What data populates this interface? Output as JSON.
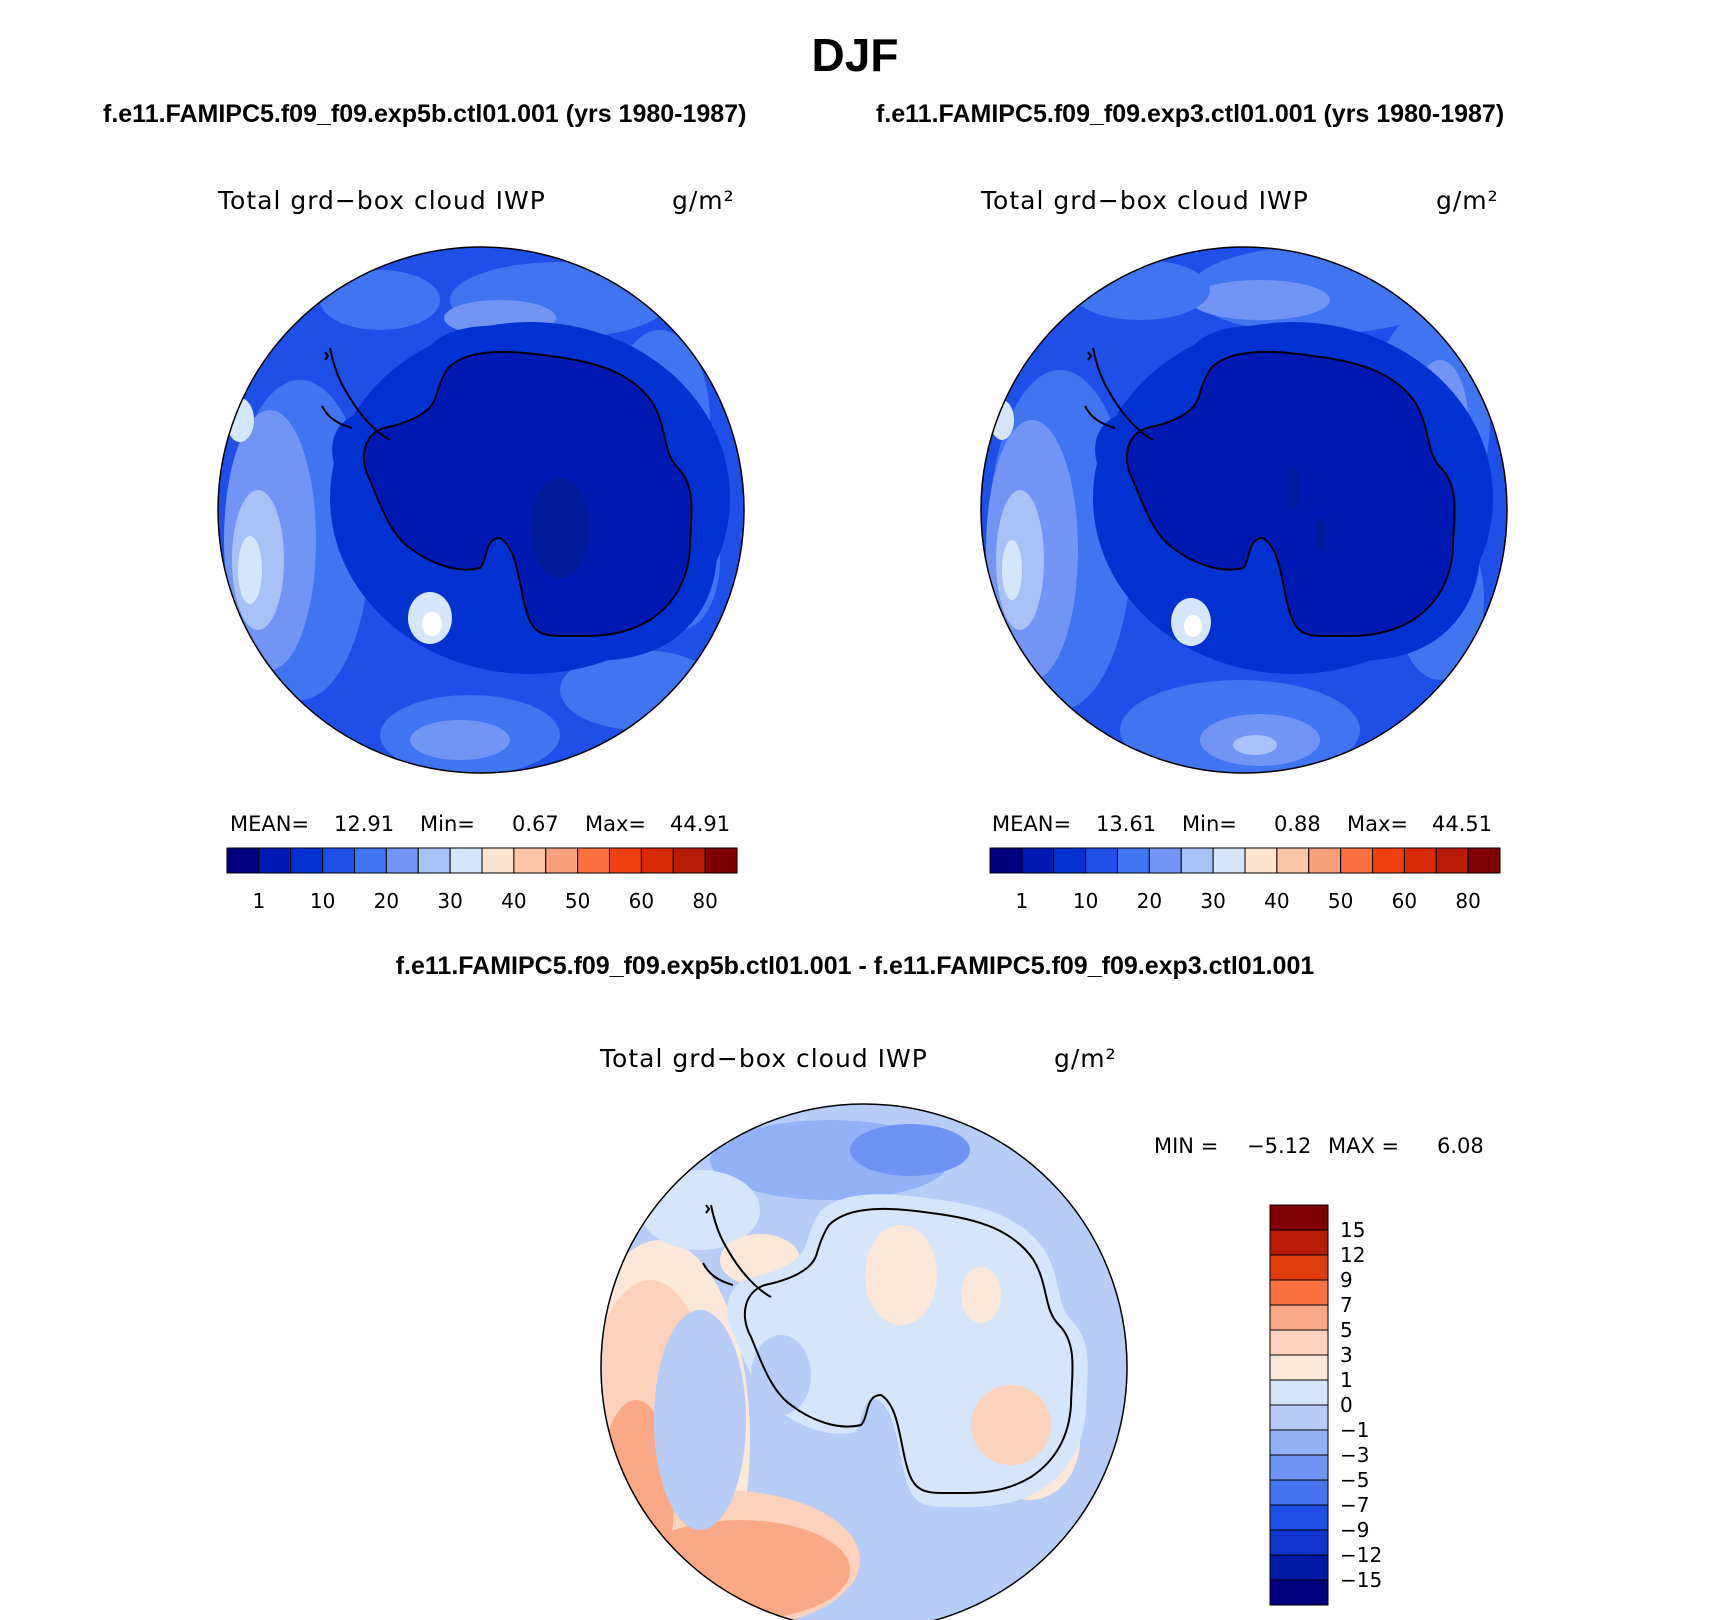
{
  "header": {
    "season": "DJF",
    "run1": "f.e11.FAMIPC5.f09_f09.exp5b.ctl01.001 (yrs 1980-1987)",
    "run2": "f.e11.FAMIPC5.f09_f09.exp3.ctl01.001 (yrs 1980-1987)",
    "diff_title": "f.e11.FAMIPC5.f09_f09.exp5b.ctl01.001 - f.e11.FAMIPC5.f09_f09.exp3.ctl01.001"
  },
  "panels": {
    "left": {
      "variable": "Total grd−box cloud IWP",
      "units": "g/m²",
      "mean_label": "MEAN=",
      "mean": "12.91",
      "min_label": "Min=",
      "min": "0.67",
      "max_label": "Max=",
      "max": "44.91"
    },
    "right": {
      "variable": "Total grd−box cloud IWP",
      "units": "g/m²",
      "mean_label": "MEAN=",
      "mean": "13.61",
      "min_label": "Min=",
      "min": "0.88",
      "max_label": "Max=",
      "max": "44.51"
    },
    "diff": {
      "variable": "Total grd−box cloud IWP",
      "units": "g/m²",
      "min_label": "MIN =",
      "min": "−5.12",
      "max_label": "MAX =",
      "max": "6.08"
    }
  },
  "colorbars": {
    "absolute": {
      "colors": [
        "#00007f",
        "#0019b2",
        "#0032d2",
        "#1f4fe8",
        "#4174f0",
        "#7295f5",
        "#a8c1f7",
        "#d6e6fa",
        "#fde4d0",
        "#fcc5a8",
        "#f9a07c",
        "#fa7040",
        "#f04010",
        "#d82a05",
        "#b81c05",
        "#7f0000"
      ],
      "labels": [
        "1",
        "10",
        "20",
        "30",
        "40",
        "50",
        "60",
        "80"
      ]
    },
    "difference": {
      "colors": [
        "#7f0000",
        "#b81c05",
        "#e03c0a",
        "#fa7040",
        "#fba886",
        "#fcd2bc",
        "#fde7d8",
        "#d6e6fa",
        "#b7cdf8",
        "#93b1f6",
        "#6e93f3",
        "#4674ef",
        "#1f4fe8",
        "#0f35ce",
        "#001aa8",
        "#00007f"
      ],
      "labels": [
        "15",
        "12",
        "9",
        "7",
        "5",
        "3",
        "1",
        "0",
        "−1",
        "−3",
        "−5",
        "−7",
        "−9",
        "−12",
        "−15"
      ]
    }
  },
  "map_colors": {
    "ocean_abs": "#1f4fe8",
    "ocean_abs_light": "#4174f0",
    "ocean_abs_lighter": "#7295f5",
    "ocean_abs_pale": "#a8c1f7",
    "ocean_abs_palest": "#d6e6fa",
    "land_abs": "#0032d2",
    "land_abs_core": "#0019b2",
    "diff_base": "#b7cdf8",
    "diff_pale": "#d6e6fa",
    "diff_mid": "#93b1f6",
    "diff_warm": "#fcd2bc",
    "diff_hot": "#fba886",
    "coastline": "#000000"
  }
}
